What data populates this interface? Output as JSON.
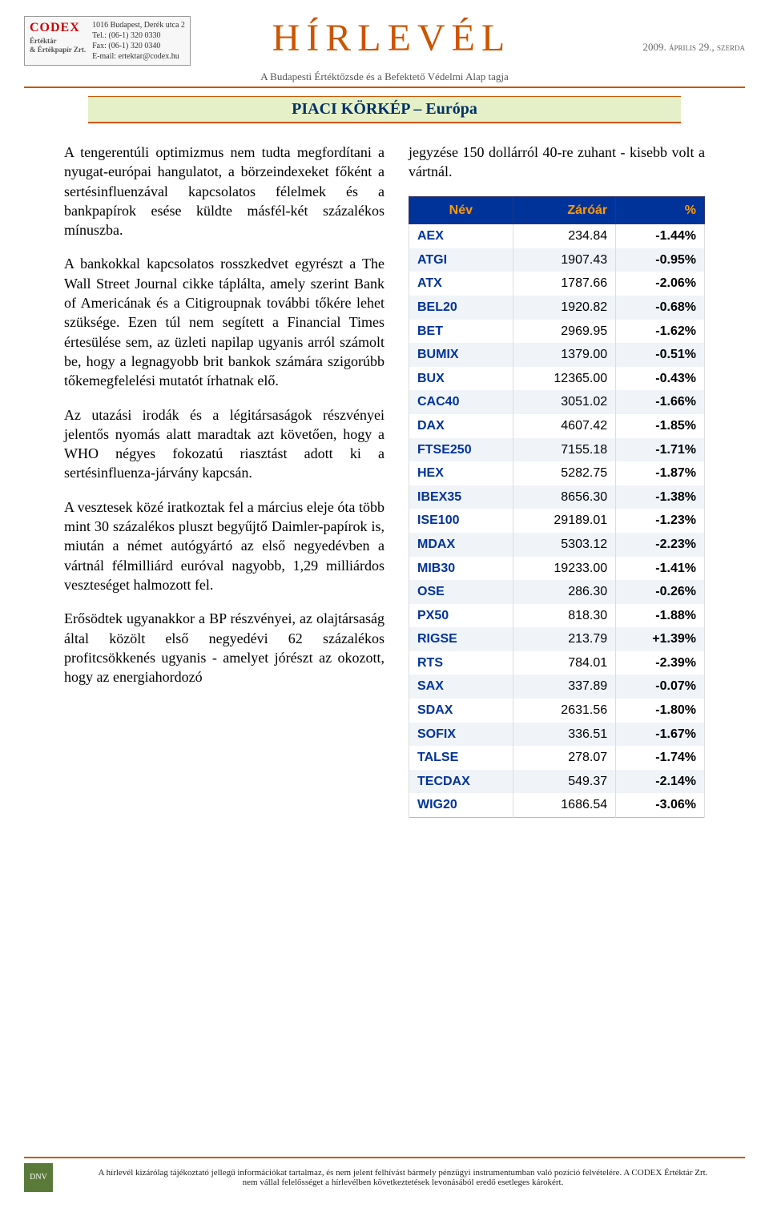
{
  "header": {
    "brand": "CODEX",
    "brand_sub1": "Értéktár",
    "brand_sub2": "& Értékpapír Zrt.",
    "address": "1016 Budapest, Derék utca 2",
    "tel": "Tel.: (06-1) 320 0330",
    "fax": "Fax: (06-1) 320 0340",
    "email": "E-mail: ertektar@codex.hu",
    "title": "HÍRLEVÉL",
    "date": "2009. április 29., szerda",
    "subline": "A Budapesti Értéktőzsde és a Befektető Védelmi Alap tagja"
  },
  "section_title": "PIACI KÖRKÉP – Európa",
  "paragraphs": [
    "A tengerentúli optimizmus nem tudta megfordítani a nyugat-európai hangulatot, a börzeindexeket főként a sertésinfluenzával kapcsolatos félelmek és a bankpapírok esése küldte másfél-két százalékos mínuszba.",
    "A bankokkal kapcsolatos rosszkedvet egyrészt a The Wall Street Journal cikke táplálta, amely szerint Bank of Americának és a Citigroupnak további tőkére lehet szüksége. Ezen túl nem segített a Financial Times értesülése sem, az üzleti napilap ugyanis arról számolt be, hogy a legnagyobb brit bankok számára szigorúbb tőkemegfelelési mutatót írhatnak elő.",
    "Az utazási irodák és a légitársaságok részvényei jelentős nyomás alatt maradtak azt követően, hogy a WHO négyes fokozatú riasztást adott ki a sertésinfluenza-járvány kapcsán.",
    "A vesztesek közé iratkoztak fel a március eleje óta több mint 30 százalékos pluszt begyűjtő Daimler-papírok is, miután a német autógyártó az első negyedévben a vártnál félmilliárd euróval nagyobb, 1,29 milliárdos veszteséget halmozott fel.",
    "Erősödtek ugyanakkor a BP részvényei, az olajtársaság által közölt első negyedévi 62 százalékos profitcsökkenés ugyanis - amelyet jórészt az okozott, hogy az energiahordozó"
  ],
  "right_paragraph": "jegyzése 150 dollárról 40-re zuhant - kisebb volt a vártnál.",
  "table": {
    "headers": [
      "Név",
      "Záróár",
      "%"
    ],
    "rows": [
      {
        "name": "AEX",
        "price": "234.84",
        "pct": "-1.44%"
      },
      {
        "name": "ATGI",
        "price": "1907.43",
        "pct": "-0.95%"
      },
      {
        "name": "ATX",
        "price": "1787.66",
        "pct": "-2.06%"
      },
      {
        "name": "BEL20",
        "price": "1920.82",
        "pct": "-0.68%"
      },
      {
        "name": "BET",
        "price": "2969.95",
        "pct": "-1.62%"
      },
      {
        "name": "BUMIX",
        "price": "1379.00",
        "pct": "-0.51%"
      },
      {
        "name": "BUX",
        "price": "12365.00",
        "pct": "-0.43%"
      },
      {
        "name": "CAC40",
        "price": "3051.02",
        "pct": "-1.66%"
      },
      {
        "name": "DAX",
        "price": "4607.42",
        "pct": "-1.85%"
      },
      {
        "name": "FTSE250",
        "price": "7155.18",
        "pct": "-1.71%"
      },
      {
        "name": "HEX",
        "price": "5282.75",
        "pct": "-1.87%"
      },
      {
        "name": "IBEX35",
        "price": "8656.30",
        "pct": "-1.38%"
      },
      {
        "name": "ISE100",
        "price": "29189.01",
        "pct": "-1.23%"
      },
      {
        "name": "MDAX",
        "price": "5303.12",
        "pct": "-2.23%"
      },
      {
        "name": "MIB30",
        "price": "19233.00",
        "pct": "-1.41%"
      },
      {
        "name": "OSE",
        "price": "286.30",
        "pct": "-0.26%"
      },
      {
        "name": "PX50",
        "price": "818.30",
        "pct": "-1.88%"
      },
      {
        "name": "RIGSE",
        "price": "213.79",
        "pct": "+1.39%"
      },
      {
        "name": "RTS",
        "price": "784.01",
        "pct": "-2.39%"
      },
      {
        "name": "SAX",
        "price": "337.89",
        "pct": "-0.07%"
      },
      {
        "name": "SDAX",
        "price": "2631.56",
        "pct": "-1.80%"
      },
      {
        "name": "SOFIX",
        "price": "336.51",
        "pct": "-1.67%"
      },
      {
        "name": "TALSE",
        "price": "278.07",
        "pct": "-1.74%"
      },
      {
        "name": "TECDAX",
        "price": "549.37",
        "pct": "-2.14%"
      },
      {
        "name": "WIG20",
        "price": "1686.54",
        "pct": "-3.06%"
      }
    ],
    "header_bg": "#003399",
    "header_fg": "#ff9900",
    "row_even_bg": "#f0f4f8",
    "row_odd_bg": "#ffffff",
    "name_color": "#003399"
  },
  "footer": {
    "line1": "A hírlevél kizárólag tájékoztató jellegű információkat tartalmaz, és nem jelent felhívást bármely pénzügyi instrumentumban való pozíció felvételére. A CODEX Értéktár Zrt.",
    "line2": "nem vállal felelősséget a hírlevélben következtetések levonásából eredő esetleges károkért.",
    "badge": "DNV"
  }
}
